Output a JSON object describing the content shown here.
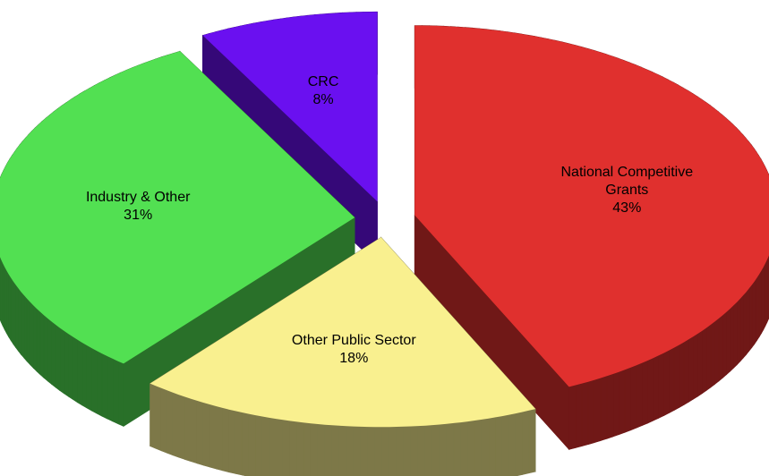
{
  "chart_data": {
    "type": "pie",
    "categories": [
      "National Competitive Grants",
      "Other Public Sector",
      "Industry & Other",
      "CRC"
    ],
    "values": [
      43,
      18,
      31,
      8
    ],
    "value_labels": [
      "43%",
      "18%",
      "31%",
      "8%"
    ],
    "colors": [
      "#e0302e",
      "#f9f08f",
      "#52e052",
      "#6a10f0"
    ]
  }
}
